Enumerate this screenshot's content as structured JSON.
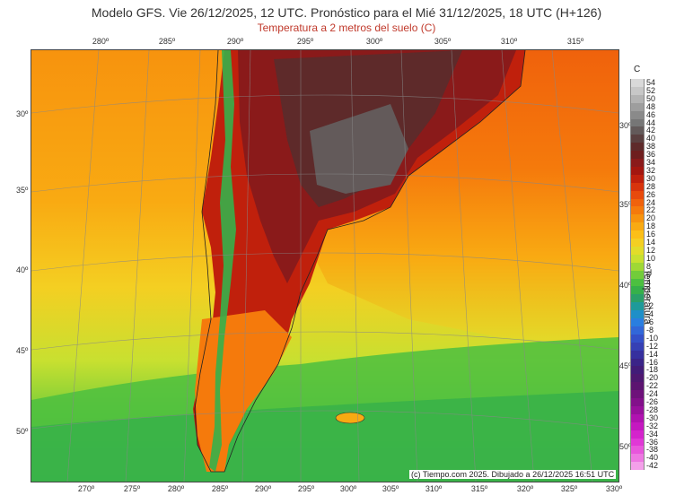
{
  "header": {
    "title": "Modelo GFS. Vie 26/12/2025, 12 UTC. Pronóstico para el Mié 31/12/2025, 18 UTC (H+126)",
    "subtitle": "Temperatura a 2 metros del suelo (C)"
  },
  "map": {
    "top_longitudes": [
      "280º",
      "285º",
      "290º",
      "295º",
      "300º",
      "305º",
      "310º",
      "315º"
    ],
    "bottom_longitudes": [
      "270º",
      "275º",
      "280º",
      "285º",
      "290º",
      "295º",
      "300º",
      "305º",
      "310º",
      "315º",
      "320º",
      "325º",
      "330º"
    ],
    "left_latitudes": [
      "30º",
      "35º",
      "40º",
      "45º",
      "50º"
    ],
    "right_latitudes": [
      "30º",
      "35º",
      "40º",
      "45º",
      "50º"
    ],
    "credit": "(c) Tiempo.com 2025. Dibujado a 26/12/2025 16:51 UTC"
  },
  "legend": {
    "unit": "C",
    "name": "Temperatura",
    "labels": [
      "54",
      "52",
      "50",
      "48",
      "46",
      "44",
      "42",
      "40",
      "38",
      "36",
      "34",
      "32",
      "30",
      "28",
      "26",
      "24",
      "22",
      "20",
      "18",
      "16",
      "14",
      "12",
      "10",
      "8",
      "6",
      "4",
      "2",
      "0",
      "-2",
      "-4",
      "-6",
      "-8",
      "-10",
      "-12",
      "-14",
      "-16",
      "-18",
      "-20",
      "-22",
      "-24",
      "-26",
      "-28",
      "-30",
      "-32",
      "-34",
      "-36",
      "-38",
      "-40",
      "-42"
    ],
    "colors": [
      "#d9d9d9",
      "#c7c7c7",
      "#b3b3b3",
      "#9e9e9e",
      "#8a8a8a",
      "#767676",
      "#635a5a",
      "#5a4040",
      "#5e2a2a",
      "#6e1e1e",
      "#8a1a1a",
      "#a3160f",
      "#c0200c",
      "#d8340c",
      "#e84a0c",
      "#f0620c",
      "#f57a0c",
      "#f7930e",
      "#f9aa12",
      "#fbbf18",
      "#f4cf22",
      "#e2dc2a",
      "#c8e030",
      "#9fd835",
      "#72cc3a",
      "#4cc040",
      "#36b04a",
      "#2aa068",
      "#1e9a9a",
      "#1f8fc8",
      "#2a7ee0",
      "#3267d8",
      "#3450c8",
      "#3640b4",
      "#36309e",
      "#3a2488",
      "#421c78",
      "#4e1870",
      "#5c1470",
      "#6e127a",
      "#82108a",
      "#98109c",
      "#b012b0",
      "#c418c0",
      "#d424cc",
      "#e038d6",
      "#e856dc",
      "#ee78e2",
      "#f4a0ea"
    ]
  }
}
